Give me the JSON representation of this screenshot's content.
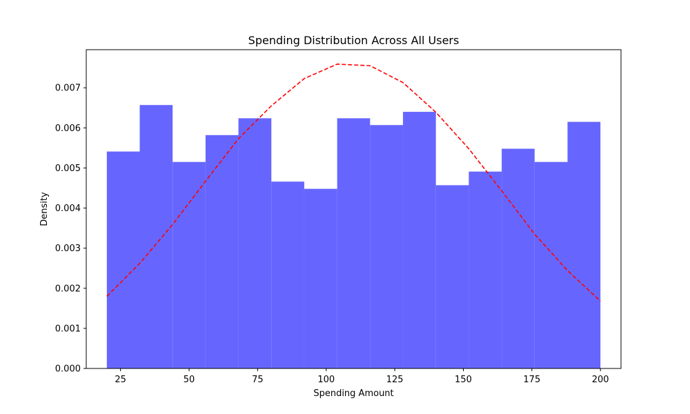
{
  "chart_data": {
    "type": "histogram",
    "title": "Spending Distribution Across All Users",
    "xlabel": "Spending Amount",
    "ylabel": "Density",
    "xlim": [
      12.5,
      207.5
    ],
    "ylim": [
      0,
      0.00795
    ],
    "xticks": [
      25,
      50,
      75,
      100,
      125,
      150,
      175,
      200
    ],
    "yticks": [
      0.0,
      0.001,
      0.002,
      0.003,
      0.004,
      0.005,
      0.006,
      0.007
    ],
    "ytick_labels": [
      "0.000",
      "0.001",
      "0.002",
      "0.003",
      "0.004",
      "0.005",
      "0.006",
      "0.007"
    ],
    "grid": false,
    "legend": null,
    "histogram": {
      "color": "#6666ff",
      "bin_edges": [
        20,
        32,
        44,
        56,
        68,
        80,
        92,
        104,
        116,
        128,
        140,
        152,
        164,
        176,
        188,
        200
      ],
      "densities": [
        0.00541,
        0.00657,
        0.00515,
        0.00582,
        0.00624,
        0.00466,
        0.00448,
        0.00624,
        0.00607,
        0.0064,
        0.00457,
        0.00491,
        0.00548,
        0.00515,
        0.00615
      ]
    },
    "curve": {
      "color": "#ff0000",
      "style": "dashed",
      "x": [
        20,
        32,
        44,
        56,
        68,
        80,
        92,
        104,
        116,
        128,
        140,
        152,
        164,
        176,
        188,
        200
      ],
      "y": [
        0.0018,
        0.00262,
        0.00359,
        0.00467,
        0.00573,
        0.00655,
        0.00723,
        0.00759,
        0.00755,
        0.00713,
        0.00639,
        0.00548,
        0.00443,
        0.00335,
        0.00244,
        0.00168
      ]
    }
  }
}
